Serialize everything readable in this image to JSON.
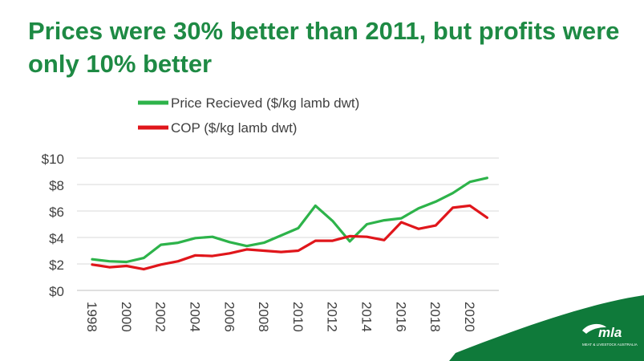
{
  "slide": {
    "headline": "Prices were 30% better than 2011, but profits were only 10% better"
  },
  "brand": {
    "logo_text": "mla",
    "logo_subtext": "MEAT & LIVESTOCK AUSTRALIA",
    "band_color": "#0f7a3a"
  },
  "chart_data": {
    "type": "line",
    "title": "",
    "xlabel": "",
    "ylabel": "",
    "x": [
      1998,
      1999,
      2000,
      2001,
      2002,
      2003,
      2004,
      2005,
      2006,
      2007,
      2008,
      2009,
      2010,
      2011,
      2012,
      2013,
      2014,
      2015,
      2016,
      2017,
      2018,
      2019,
      2020,
      2021
    ],
    "x_ticks": [
      "1998",
      "2000",
      "2002",
      "2004",
      "2006",
      "2008",
      "2010",
      "2012",
      "2014",
      "2016",
      "2018",
      "2020"
    ],
    "y_ticks": [
      "$0",
      "$2",
      "$4",
      "$6",
      "$8",
      "$10"
    ],
    "ylim": [
      0,
      10
    ],
    "grid": true,
    "legend": "top",
    "series": [
      {
        "name": "Price Recieved ($/kg lamb dwt)",
        "color": "#2db34a",
        "values": [
          2.35,
          2.2,
          2.15,
          2.45,
          3.45,
          3.6,
          3.95,
          4.05,
          3.65,
          3.35,
          3.6,
          4.15,
          4.7,
          6.4,
          5.25,
          3.7,
          5.0,
          5.3,
          5.45,
          6.2,
          6.7,
          7.35,
          8.2,
          8.5
        ]
      },
      {
        "name": "COP ($/kg lamb dwt)",
        "color": "#e0161b",
        "values": [
          1.95,
          1.75,
          1.85,
          1.6,
          1.95,
          2.2,
          2.65,
          2.6,
          2.8,
          3.1,
          3.0,
          2.9,
          3.0,
          3.75,
          3.75,
          4.1,
          4.05,
          3.8,
          5.15,
          4.65,
          4.9,
          6.25,
          6.4,
          5.5
        ]
      }
    ]
  }
}
